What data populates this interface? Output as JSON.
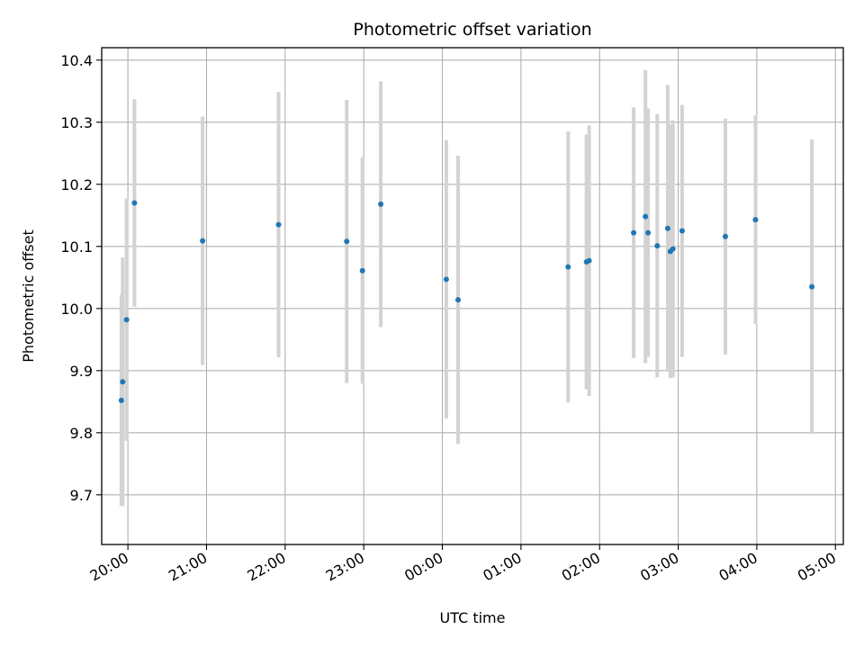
{
  "chart_data": {
    "type": "scatter",
    "title": "Photometric offset variation",
    "xlabel": "UTC time",
    "ylabel": "Photometric offset",
    "x_axis": {
      "unit": "hours since 19:40 UTC",
      "range": [
        "19:40",
        "05:06"
      ],
      "ticks": [
        "20:00",
        "21:00",
        "22:00",
        "23:00",
        "00:00",
        "01:00",
        "02:00",
        "03:00",
        "04:00",
        "05:00"
      ]
    },
    "y_axis": {
      "range": [
        9.62,
        10.42
      ],
      "ticks": [
        "9.7",
        "9.8",
        "9.9",
        "10.0",
        "10.1",
        "10.2",
        "10.3",
        "10.4"
      ]
    },
    "grid": true,
    "marker_color": "#1f77b4",
    "errorbar_color": "#d3d3d3",
    "points": [
      {
        "t": "19:55",
        "y": 9.852,
        "err": 0.17
      },
      {
        "t": "19:56",
        "y": 9.882,
        "err": 0.2
      },
      {
        "t": "19:59",
        "y": 9.982,
        "err": 0.195
      },
      {
        "t": "20:05",
        "y": 10.17,
        "err": 0.167
      },
      {
        "t": "20:57",
        "y": 10.109,
        "err": 0.2
      },
      {
        "t": "21:55",
        "y": 10.135,
        "err": 0.214
      },
      {
        "t": "22:47",
        "y": 10.108,
        "err": 0.228
      },
      {
        "t": "22:59",
        "y": 10.061,
        "err": 0.182
      },
      {
        "t": "23:13",
        "y": 10.168,
        "err": 0.198
      },
      {
        "t": "00:03",
        "y": 10.047,
        "err": 0.224
      },
      {
        "t": "00:12",
        "y": 10.014,
        "err": 0.232
      },
      {
        "t": "01:36",
        "y": 10.067,
        "err": 0.218
      },
      {
        "t": "01:50",
        "y": 10.075,
        "err": 0.205
      },
      {
        "t": "01:52",
        "y": 10.077,
        "err": 0.218
      },
      {
        "t": "02:26",
        "y": 10.122,
        "err": 0.202
      },
      {
        "t": "02:35",
        "y": 10.148,
        "err": 0.236
      },
      {
        "t": "02:37",
        "y": 10.122,
        "err": 0.2
      },
      {
        "t": "02:44",
        "y": 10.101,
        "err": 0.212
      },
      {
        "t": "02:52",
        "y": 10.129,
        "err": 0.231
      },
      {
        "t": "02:54",
        "y": 10.092,
        "err": 0.204
      },
      {
        "t": "02:56",
        "y": 10.096,
        "err": 0.207
      },
      {
        "t": "03:03",
        "y": 10.125,
        "err": 0.203
      },
      {
        "t": "03:36",
        "y": 10.116,
        "err": 0.19
      },
      {
        "t": "03:59",
        "y": 10.143,
        "err": 0.168
      },
      {
        "t": "04:42",
        "y": 10.035,
        "err": 0.237
      }
    ]
  }
}
